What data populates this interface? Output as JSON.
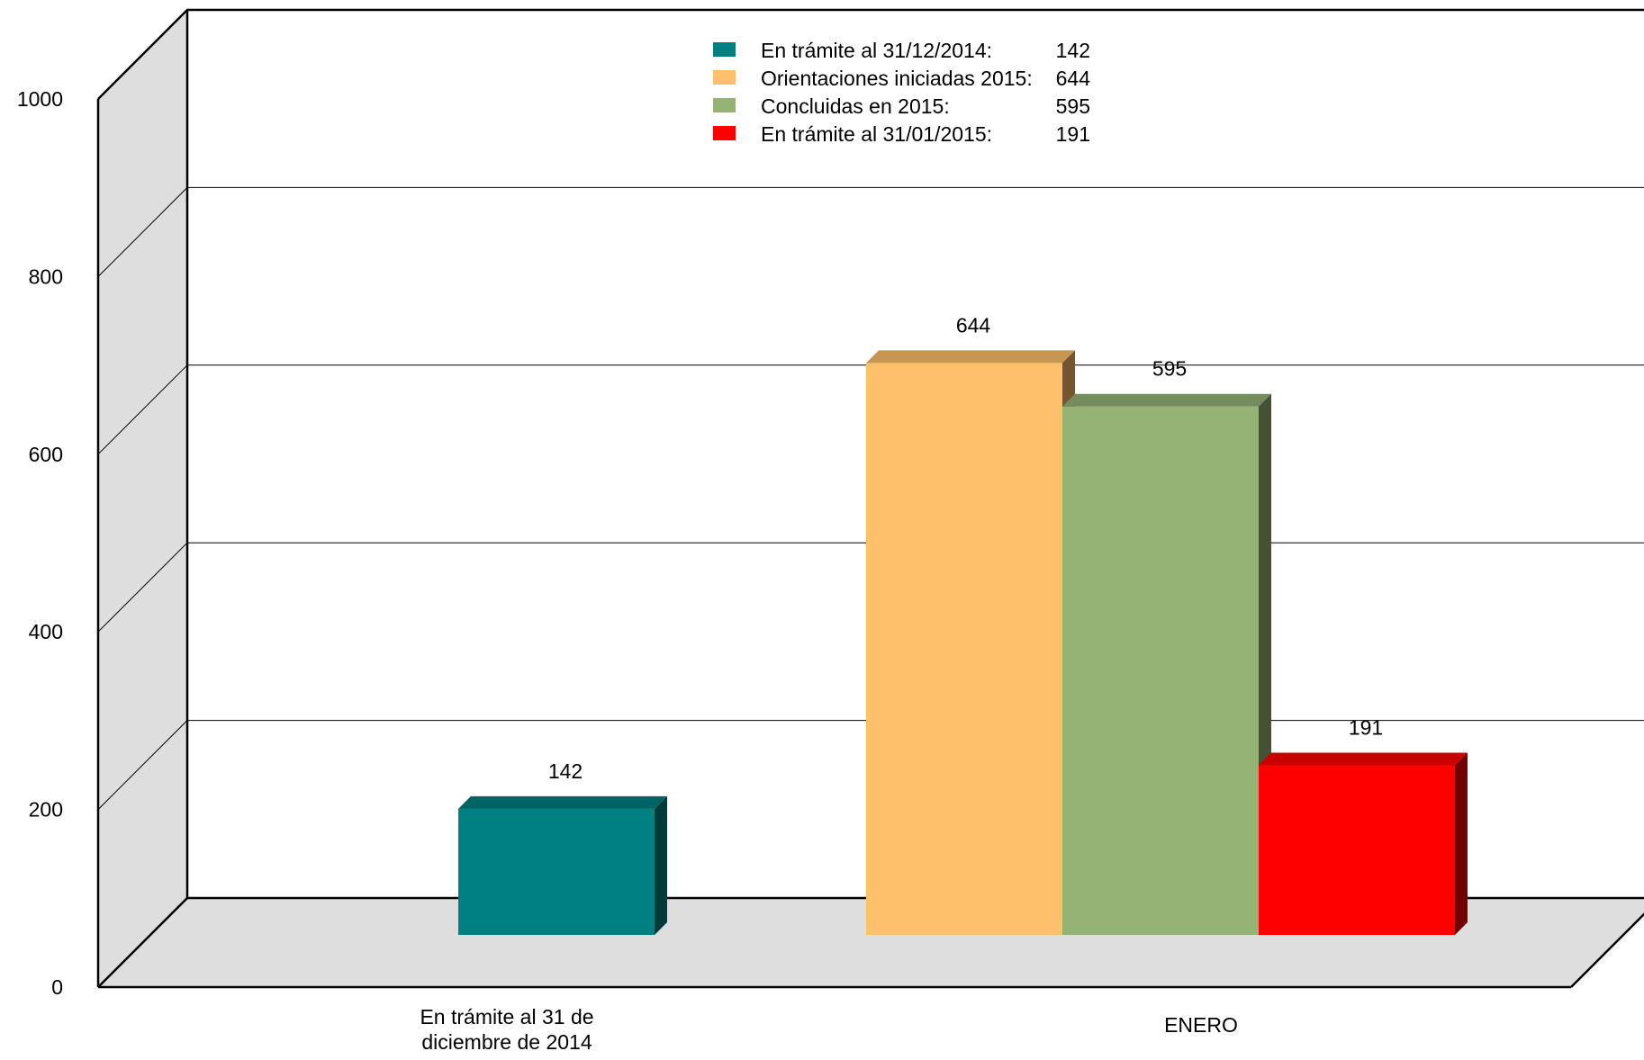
{
  "chart_data": {
    "type": "bar",
    "three_d": true,
    "title": "",
    "xlabel": "",
    "ylabel": "",
    "ylim": [
      0,
      1000
    ],
    "yticks": [
      0,
      200,
      400,
      600,
      800,
      1000
    ],
    "grid": true,
    "legend_position": "top-center",
    "categories": [
      "En trámite al 31 de diciembre de 2014",
      "ENERO"
    ],
    "category_lines": [
      [
        "En trámite al 31 de",
        "diciembre de 2014"
      ],
      [
        "ENERO"
      ]
    ],
    "series": [
      {
        "name": "En trámite al 31/12/2014:",
        "legend_value": "142",
        "color": "#008080",
        "values": [
          142,
          null
        ]
      },
      {
        "name": "Orientaciones iniciadas 2015:",
        "legend_value": "644",
        "color": "#FFC06B",
        "values": [
          null,
          644
        ]
      },
      {
        "name": "Concluidas en 2015:",
        "legend_value": "595",
        "color": "#96B376",
        "values": [
          null,
          595
        ]
      },
      {
        "name": "En trámite al 31/01/2015:",
        "legend_value": "191",
        "color": "#FF0000",
        "values": [
          null,
          191
        ]
      }
    ]
  }
}
